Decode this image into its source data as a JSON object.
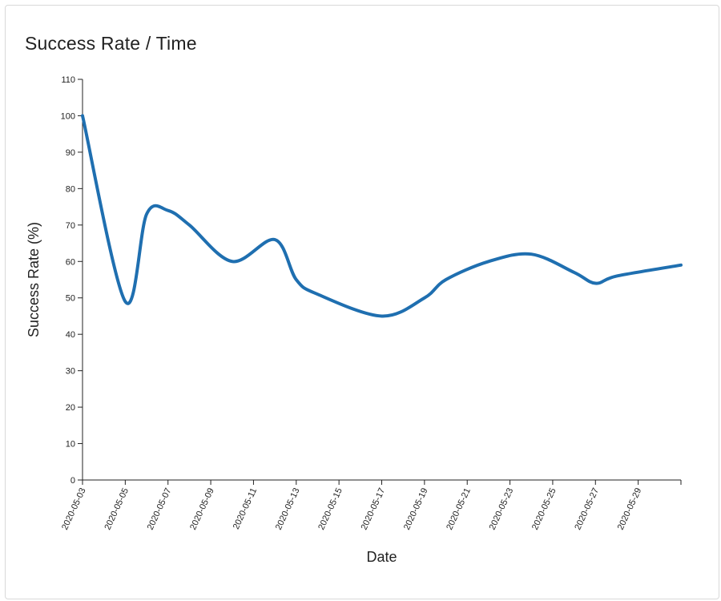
{
  "card": {
    "title": "Success Rate / Time"
  },
  "chart_data": {
    "type": "line",
    "title": "Success Rate / Time",
    "xlabel": "Date",
    "ylabel": "Success Rate (%)",
    "ylim": [
      0,
      110
    ],
    "xlim": [
      "2020-05-03",
      "2020-05-31"
    ],
    "yticks": [
      0,
      10,
      20,
      30,
      40,
      50,
      60,
      70,
      80,
      90,
      100,
      110
    ],
    "xticks": [
      "2020-05-03",
      "2020-05-05",
      "2020-05-07",
      "2020-05-09",
      "2020-05-11",
      "2020-05-13",
      "2020-05-15",
      "2020-05-17",
      "2020-05-19",
      "2020-05-21",
      "2020-05-23",
      "2020-05-25",
      "2020-05-27",
      "2020-05-29"
    ],
    "series": [
      {
        "color": "#1f6fb0",
        "x": [
          "2020-05-03",
          "2020-05-05",
          "2020-05-06",
          "2020-05-07",
          "2020-05-08",
          "2020-05-10",
          "2020-05-12",
          "2020-05-13",
          "2020-05-14",
          "2020-05-17",
          "2020-05-19",
          "2020-05-20",
          "2020-05-22",
          "2020-05-24",
          "2020-05-26",
          "2020-05-27",
          "2020-05-28",
          "2020-05-31"
        ],
        "y": [
          100,
          49,
          73,
          74,
          70,
          60,
          66,
          55,
          51,
          45,
          50,
          55,
          60,
          62,
          57,
          54,
          56,
          59
        ]
      }
    ]
  }
}
